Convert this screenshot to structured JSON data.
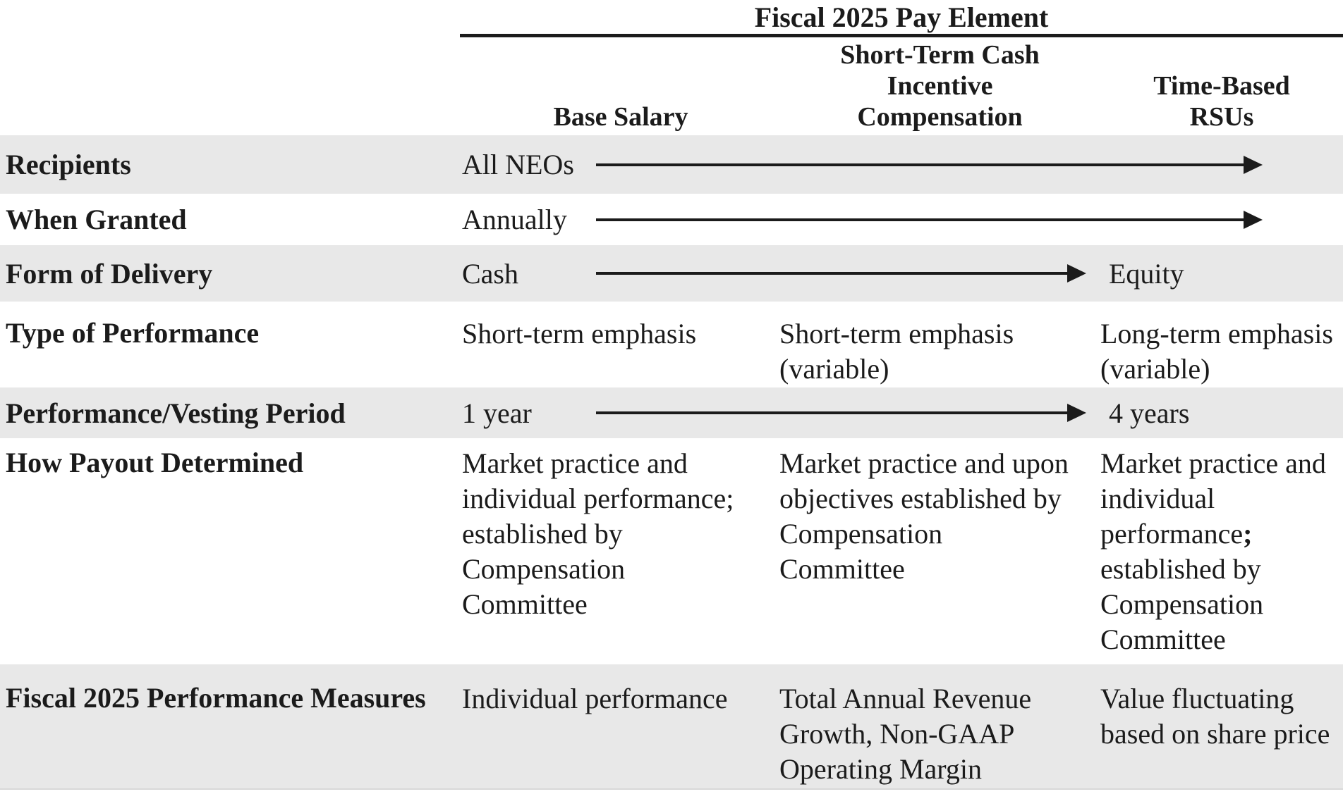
{
  "colors": {
    "page_bg": "#ffffff",
    "text": "#1b1b1b",
    "row_stripe": "#e8e8e8"
  },
  "header": {
    "title": "Fiscal 2025 Pay Element",
    "columns": [
      {
        "label": "Base Salary"
      },
      {
        "label": "Short-Term Cash\nIncentive\nCompensation"
      },
      {
        "label": "Time-Based\nRSUs"
      }
    ]
  },
  "rows": {
    "recipients": {
      "label": "Recipients",
      "value": "All NEOs",
      "arrow": "right-arrow-spanning-all-columns"
    },
    "when_granted": {
      "label": "When Granted",
      "value": "Annually",
      "arrow": "right-arrow-spanning-all-columns"
    },
    "form_of_delivery": {
      "label": "Form of Delivery",
      "value": "Cash",
      "arrow": "right-arrow-to-last-column",
      "end_value": "Equity"
    },
    "type_of_performance": {
      "label": "Type of Performance",
      "cells": [
        "Short-term emphasis",
        "Short-term emphasis\n(variable)",
        "Long-term emphasis\n(variable)"
      ]
    },
    "performance_vesting_period": {
      "label": "Performance/Vesting Period",
      "value": "1 year",
      "arrow": "right-arrow-to-last-column",
      "end_value": "4 years"
    },
    "how_payout_determined": {
      "label": "How Payout Determined",
      "cells": [
        "Market practice and\nindividual performance;\nestablished by\nCompensation\nCommittee",
        "Market practice and upon\nobjectives established by\nCompensation\nCommittee"
      ],
      "cell3": {
        "before": "Market practice and\nindividual\nperformance",
        "bold_semicolon": ";",
        "after": "\nestablished by\nCompensation\nCommittee"
      }
    },
    "fiscal_2025_performance_measures": {
      "label": "Fiscal 2025 Performance Measures",
      "cells": [
        "Individual performance",
        "Total Annual Revenue\nGrowth, Non-GAAP\nOperating Margin",
        "Value fluctuating\nbased on share price"
      ]
    }
  }
}
